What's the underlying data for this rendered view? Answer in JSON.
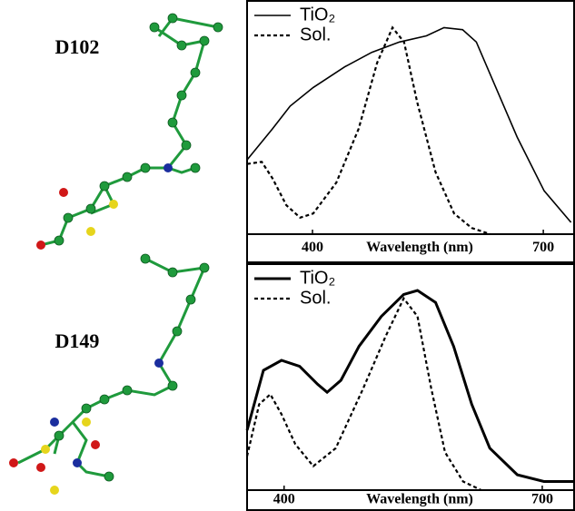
{
  "chart_data": [
    {
      "type": "line",
      "title": "D102",
      "x_label": "Wavelength (nm)",
      "xlim": [
        315,
        740
      ],
      "xticks": [
        400,
        700
      ],
      "ylim": [
        0,
        1.05
      ],
      "series": [
        {
          "name": "TiO₂",
          "color": "#000000",
          "style": "solid",
          "x": [
            315,
            348,
            371,
            401,
            442,
            477,
            513,
            548,
            571,
            595,
            613,
            636,
            666,
            701,
            736
          ],
          "values": [
            0.36,
            0.51,
            0.62,
            0.71,
            0.81,
            0.88,
            0.93,
            0.96,
            1.0,
            0.99,
            0.93,
            0.73,
            0.47,
            0.21,
            0.057
          ]
        },
        {
          "name": "Sol.",
          "color": "#000000",
          "style": "dotted",
          "x": [
            315,
            334,
            348,
            366,
            384,
            401,
            431,
            460,
            484,
            504,
            519,
            536,
            560,
            584,
            607,
            631
          ],
          "values": [
            0.34,
            0.35,
            0.27,
            0.14,
            0.08,
            0.1,
            0.25,
            0.51,
            0.83,
            1.0,
            0.93,
            0.64,
            0.3,
            0.1,
            0.03,
            0.0
          ]
        }
      ]
    },
    {
      "type": "line",
      "title": "D149",
      "x_label": "Wavelength (nm)",
      "xlim": [
        357,
        737
      ],
      "xticks": [
        400,
        700
      ],
      "ylim": [
        0,
        1.05
      ],
      "series": [
        {
          "name": "TiO₂",
          "color": "#000000",
          "style": "thick",
          "x": [
            357,
            376,
            397,
            418,
            439,
            450,
            466,
            487,
            513,
            539,
            555,
            576,
            597,
            618,
            639,
            671,
            702,
            737
          ],
          "values": [
            0.3,
            0.6,
            0.65,
            0.62,
            0.53,
            0.49,
            0.55,
            0.72,
            0.87,
            0.98,
            1.0,
            0.94,
            0.72,
            0.43,
            0.21,
            0.077,
            0.043,
            0.043
          ]
        },
        {
          "name": "Sol.",
          "color": "#000000",
          "style": "dotted",
          "x": [
            357,
            371,
            384,
            397,
            413,
            434,
            460,
            492,
            518,
            539,
            555,
            571,
            587,
            608,
            629
          ],
          "values": [
            0.17,
            0.43,
            0.48,
            0.38,
            0.23,
            0.12,
            0.21,
            0.51,
            0.77,
            0.96,
            0.87,
            0.51,
            0.19,
            0.043,
            0.0
          ]
        }
      ]
    }
  ]
}
